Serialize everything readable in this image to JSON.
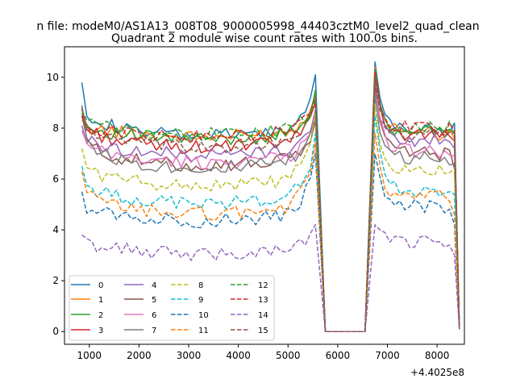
{
  "chart_data": {
    "type": "line",
    "suptitle": "n file: modeM0/AS1A13_008T08_9000005998_44403cztM0_level2_quad_clean",
    "title": "Quadrant 2 module wise count rates with 100.0s bins.",
    "xlabel": "",
    "ylabel": "",
    "x_offset_label": "+4.4025e8",
    "xlim": [
      500,
      8550
    ],
    "ylim": [
      -0.5,
      11.2
    ],
    "x_ticks": [
      1000,
      2000,
      3000,
      4000,
      5000,
      6000,
      7000,
      8000
    ],
    "y_ticks": [
      0,
      2,
      4,
      6,
      8,
      10
    ],
    "x_tick_labels": [
      "1000",
      "2000",
      "3000",
      "4000",
      "5000",
      "6000",
      "7000",
      "8000"
    ],
    "y_tick_labels": [
      "0",
      "2",
      "4",
      "6",
      "8",
      "10"
    ],
    "grid": false,
    "legend_position": "lower-left",
    "legend_columns": 4,
    "segments": [
      {
        "x_start": 850,
        "x_end": 5550,
        "step": 100
      },
      {
        "x": [
          5750,
          6550
        ]
      },
      {
        "x_start": 6750,
        "x_end": 8450,
        "step": 100
      }
    ],
    "series": [
      {
        "name": "0",
        "color": "#1f77b4",
        "dash": "solid",
        "baseline": 8.05,
        "first": 9.8,
        "peak1": 10.1,
        "peak2": 10.6,
        "seg3_level": 7.9,
        "last": 8.2
      },
      {
        "name": "1",
        "color": "#ff7f0e",
        "dash": "solid",
        "baseline": 8.0,
        "first": 8.3,
        "peak1": 9.3,
        "peak2": 10.4,
        "seg3_level": 7.8,
        "last": 7.6
      },
      {
        "name": "2",
        "color": "#2ca02c",
        "dash": "solid",
        "baseline": 7.9,
        "first": 8.6,
        "peak1": 9.5,
        "peak2": 10.3,
        "seg3_level": 7.9,
        "last": 7.8
      },
      {
        "name": "3",
        "color": "#d62728",
        "dash": "solid",
        "baseline": 7.6,
        "first": 8.8,
        "peak1": 9.0,
        "peak2": 10.2,
        "seg3_level": 7.7,
        "last": 7.5
      },
      {
        "name": "4",
        "color": "#9467bd",
        "dash": "solid",
        "baseline": 7.3,
        "first": 8.1,
        "peak1": 8.7,
        "peak2": 9.8,
        "seg3_level": 7.5,
        "last": 7.2
      },
      {
        "name": "5",
        "color": "#8c564b",
        "dash": "solid",
        "baseline": 6.9,
        "first": 8.5,
        "peak1": 8.3,
        "peak2": 9.6,
        "seg3_level": 7.0,
        "last": 6.4
      },
      {
        "name": "6",
        "color": "#e377c2",
        "dash": "solid",
        "baseline": 7.0,
        "first": 7.9,
        "peak1": 8.5,
        "peak2": 9.4,
        "seg3_level": 7.1,
        "last": 6.9
      },
      {
        "name": "7",
        "color": "#7f7f7f",
        "dash": "solid",
        "baseline": 6.8,
        "first": 8.9,
        "peak1": 8.4,
        "peak2": 9.3,
        "seg3_level": 6.8,
        "last": 6.6
      },
      {
        "name": "8",
        "color": "#bcbd22",
        "dash": "dashed",
        "baseline": 6.1,
        "first": 7.2,
        "peak1": 8.6,
        "peak2": 8.9,
        "seg3_level": 6.3,
        "last": 6.4
      },
      {
        "name": "9",
        "color": "#17becf",
        "dash": "dashed",
        "baseline": 5.4,
        "first": 6.5,
        "peak1": 7.8,
        "peak2": 8.5,
        "seg3_level": 5.6,
        "last": 5.4
      },
      {
        "name": "10",
        "color": "#1f77b4",
        "dash": "dashed",
        "baseline": 4.7,
        "first": 5.5,
        "peak1": 7.0,
        "peak2": 7.0,
        "seg3_level": 4.9,
        "last": 4.2
      },
      {
        "name": "11",
        "color": "#ff7f0e",
        "dash": "dashed",
        "baseline": 5.0,
        "first": 6.3,
        "peak1": 7.4,
        "peak2": 7.8,
        "seg3_level": 5.3,
        "last": 4.6
      },
      {
        "name": "12",
        "color": "#2ca02c",
        "dash": "dashed",
        "baseline": 8.1,
        "first": 8.7,
        "peak1": 9.1,
        "peak2": 10.0,
        "seg3_level": 8.0,
        "last": 7.7
      },
      {
        "name": "13",
        "color": "#d62728",
        "dash": "dashed",
        "baseline": 8.0,
        "first": 8.5,
        "peak1": 9.0,
        "peak2": 9.9,
        "seg3_level": 8.0,
        "last": 7.9
      },
      {
        "name": "14",
        "color": "#9467bd",
        "dash": "dashed",
        "baseline": 3.4,
        "first": 3.8,
        "peak1": 4.2,
        "peak2": 4.2,
        "seg3_level": 3.5,
        "last": 3.0
      },
      {
        "name": "15",
        "color": "#8c564b",
        "dash": "dashed",
        "baseline": 7.6,
        "first": 8.8,
        "peak1": 9.2,
        "peak2": 9.9,
        "seg3_level": 7.7,
        "last": 7.8
      }
    ]
  }
}
